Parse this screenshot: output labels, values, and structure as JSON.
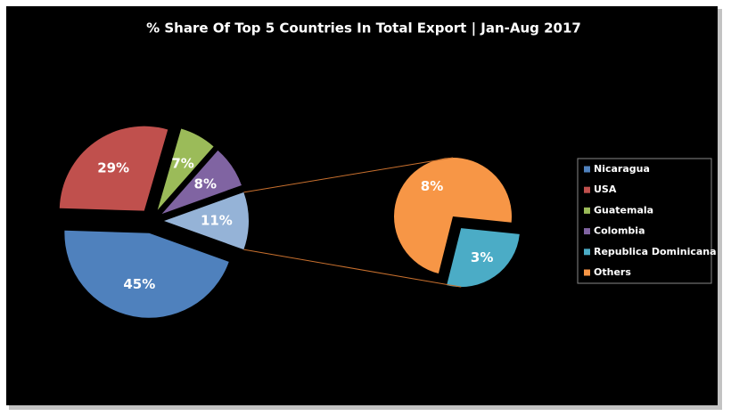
{
  "chart_data": {
    "type": "pie",
    "title": "% Share Of Top 5 Countries In Total Export | Jan-Aug 2017",
    "categories": [
      "Nicaragua",
      "USA",
      "Guatemala",
      "Colombia",
      "Republica Dominicana",
      "Others"
    ],
    "values": [
      45,
      29,
      7,
      8,
      3,
      8
    ],
    "value_labels": [
      "45%",
      "29%",
      "7%",
      "8%",
      "3%",
      "8%"
    ],
    "colors": [
      "#4f81bd",
      "#c0504d",
      "#9bbb59",
      "#8064a2",
      "#4bacc6",
      "#f79646"
    ],
    "plot": [
      "main",
      "main",
      "main",
      "main",
      "secondary",
      "secondary"
    ],
    "split_value": 11,
    "split_label": "11%",
    "split_color": "#95b3d7",
    "connector_color": "#c8702e",
    "legend": "right"
  }
}
